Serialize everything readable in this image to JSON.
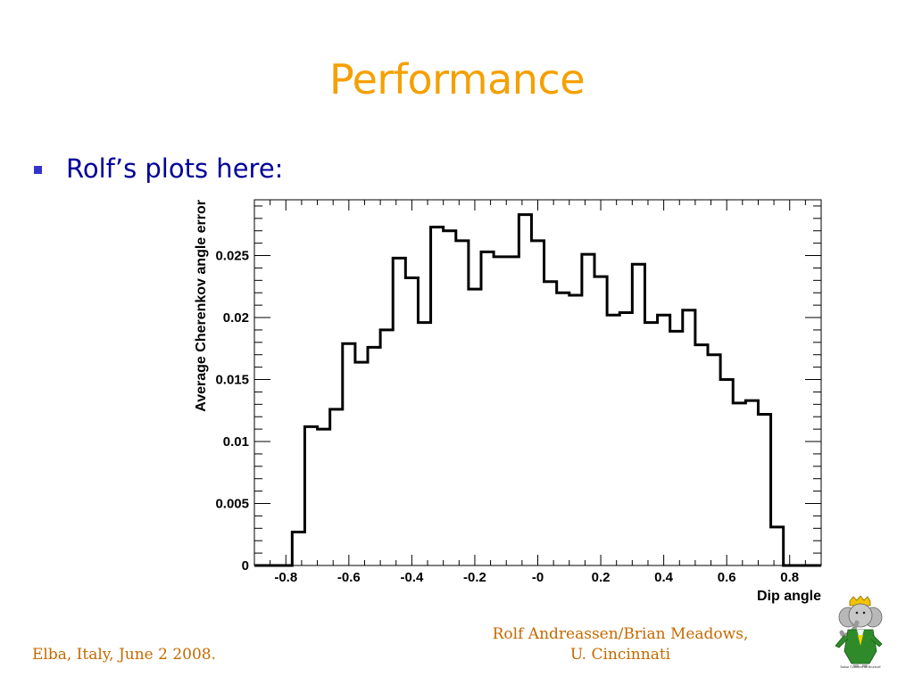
{
  "slide": {
    "title": "Performance",
    "bullet": "Rolf’s plots here:"
  },
  "footer": {
    "left": "Elba, Italy, June 2 2008.",
    "right_line1": "Rolf Andreassen/Brian Meadows,",
    "right_line2": "U. Cincinnati"
  },
  "mascot": {
    "caption": "Babar ©Laurent de Brunhoff"
  },
  "colors": {
    "title": "#f5a000",
    "bullet_text": "#000099",
    "bullet_marker": "#3333cc",
    "footer": "#c36a00",
    "histogram": "#000000"
  },
  "chart_data": {
    "type": "histogram",
    "title": "",
    "xlabel": "Dip angle",
    "ylabel": "Average Cherenkov angle error",
    "xlim": [
      -0.9,
      0.9
    ],
    "ylim": [
      0,
      0.0295
    ],
    "x_ticks": [
      -0.8,
      -0.6,
      -0.4,
      -0.2,
      0,
      0.2,
      0.4,
      0.6,
      0.8
    ],
    "x_tick_labels": [
      "-0.8",
      "-0.6",
      "-0.4",
      "-0.2",
      "-0",
      "0.2",
      "0.4",
      "0.6",
      "0.8"
    ],
    "y_ticks": [
      0,
      0.005,
      0.01,
      0.015,
      0.02,
      0.025
    ],
    "y_tick_labels": [
      "0",
      "0.005",
      "0.01",
      "0.015",
      "0.02",
      "0.025"
    ],
    "grid": false,
    "bin_edges_start": -0.9,
    "bin_width": 0.04,
    "values": [
      0,
      0,
      0,
      0.0027,
      0.0112,
      0.011,
      0.0126,
      0.0179,
      0.0164,
      0.0176,
      0.019,
      0.0248,
      0.0232,
      0.0196,
      0.0273,
      0.027,
      0.0262,
      0.0223,
      0.0253,
      0.0249,
      0.0249,
      0.0283,
      0.0262,
      0.0229,
      0.022,
      0.0218,
      0.0251,
      0.0233,
      0.0202,
      0.0204,
      0.0243,
      0.0196,
      0.0202,
      0.0189,
      0.0206,
      0.0178,
      0.017,
      0.015,
      0.0131,
      0.0133,
      0.0122,
      0.0031,
      0,
      0,
      0
    ]
  }
}
